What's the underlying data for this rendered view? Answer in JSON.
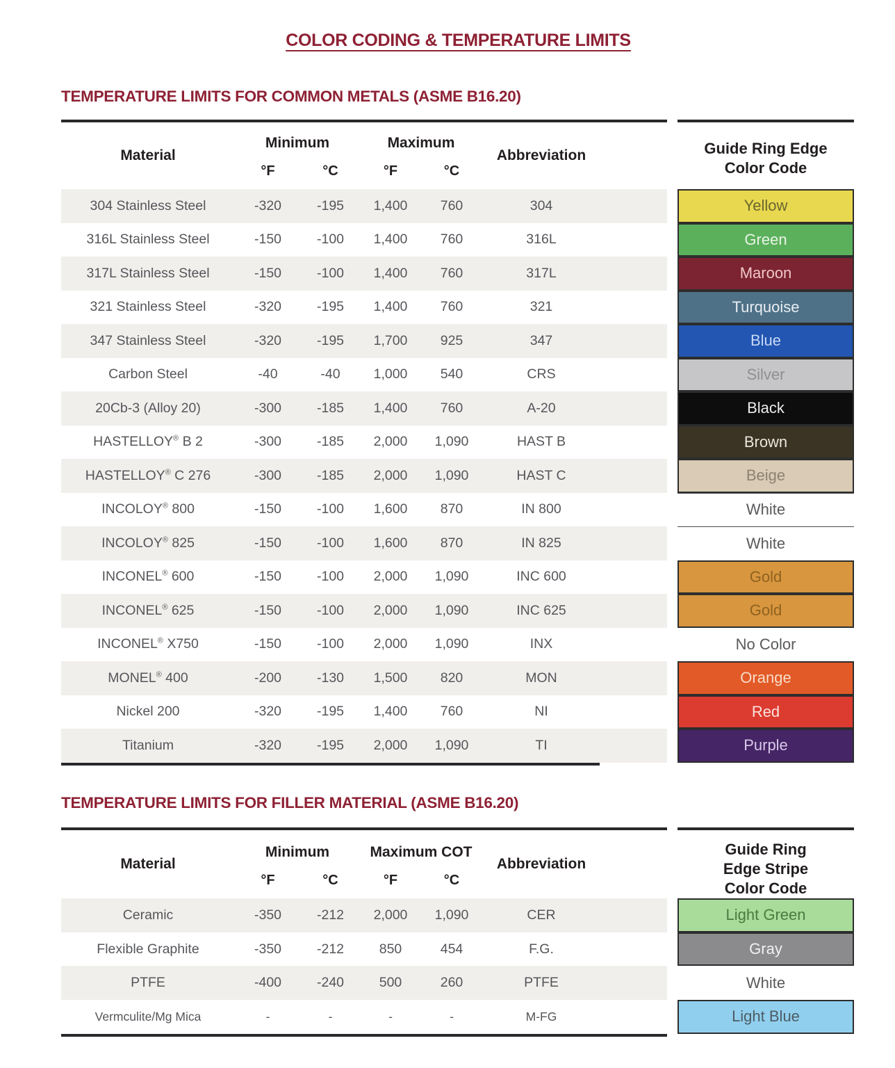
{
  "page": {
    "title": "COLOR CODING & TEMPERATURE LIMITS"
  },
  "metals_table": {
    "section_title": "TEMPERATURE LIMITS FOR COMMON METALS (ASME B16.20)",
    "headers": {
      "material": "Material",
      "minimum": "Minimum",
      "maximum": "Maximum",
      "deg_f": "°F",
      "deg_c": "°C",
      "abbreviation": "Abbreviation"
    },
    "color_column_title_line1": "Guide Ring Edge",
    "color_column_title_line2": "Color Code",
    "rows": [
      {
        "material": "304 Stainless Steel",
        "min_f": "-320",
        "min_c": "-195",
        "max_f": "1,400",
        "max_c": "760",
        "abbr": "304",
        "color_label": "Yellow",
        "swatch_bg": "#e8d84f",
        "swatch_text_color": "#6a662f",
        "swatch_style": "filled"
      },
      {
        "material": "316L Stainless Steel",
        "min_f": "-150",
        "min_c": "-100",
        "max_f": "1,400",
        "max_c": "760",
        "abbr": "316L",
        "color_label": "Green",
        "swatch_bg": "#5bb05c",
        "swatch_text_color": "#eaf4e6",
        "swatch_style": "filled"
      },
      {
        "material": "317L Stainless Steel",
        "min_f": "-150",
        "min_c": "-100",
        "max_f": "1,400",
        "max_c": "760",
        "abbr": "317L",
        "color_label": "Maroon",
        "swatch_bg": "#7c2431",
        "swatch_text_color": "#f0c6ca",
        "swatch_style": "filled"
      },
      {
        "material": "321 Stainless Steel",
        "min_f": "-320",
        "min_c": "-195",
        "max_f": "1,400",
        "max_c": "760",
        "abbr": "321",
        "color_label": "Turquoise",
        "swatch_bg": "#4f7187",
        "swatch_text_color": "#e8eef2",
        "swatch_style": "filled"
      },
      {
        "material": "347 Stainless Steel",
        "min_f": "-320",
        "min_c": "-195",
        "max_f": "1,700",
        "max_c": "925",
        "abbr": "347",
        "color_label": "Blue",
        "swatch_bg": "#2256b2",
        "swatch_text_color": "#c9d9f4",
        "swatch_style": "filled"
      },
      {
        "material": "Carbon Steel",
        "min_f": "-40",
        "min_c": "-40",
        "max_f": "1,000",
        "max_c": "540",
        "abbr": "CRS",
        "color_label": "Silver",
        "swatch_bg": "#c6c6c8",
        "swatch_text_color": "#8f8f91",
        "swatch_style": "filled"
      },
      {
        "material": "20Cb-3 (Alloy 20)",
        "min_f": "-300",
        "min_c": "-185",
        "max_f": "1,400",
        "max_c": "760",
        "abbr": "A-20",
        "color_label": "Black",
        "swatch_bg": "#0d0d0d",
        "swatch_text_color": "#ececec",
        "swatch_style": "filled"
      },
      {
        "material": "HASTELLOY® B 2",
        "min_f": "-300",
        "min_c": "-185",
        "max_f": "2,000",
        "max_c": "1,090",
        "abbr": "HAST B",
        "color_label": "Brown",
        "swatch_bg": "#3b3424",
        "swatch_text_color": "#eae6dd",
        "swatch_style": "filled"
      },
      {
        "material": "HASTELLOY® C 276",
        "min_f": "-300",
        "min_c": "-185",
        "max_f": "2,000",
        "max_c": "1,090",
        "abbr": "HAST C",
        "color_label": "Beige",
        "swatch_bg": "#d9cbb5",
        "swatch_text_color": "#8d8373",
        "swatch_style": "filled"
      },
      {
        "material": "INCOLOY® 800",
        "min_f": "-150",
        "min_c": "-100",
        "max_f": "1,600",
        "max_c": "870",
        "abbr": "IN 800",
        "color_label": "White",
        "swatch_bg": "#ffffff",
        "swatch_text_color": "#58595b",
        "swatch_style": "white"
      },
      {
        "material": "INCOLOY® 825",
        "min_f": "-150",
        "min_c": "-100",
        "max_f": "1,600",
        "max_c": "870",
        "abbr": "IN 825",
        "color_label": "White",
        "swatch_bg": "#ffffff",
        "swatch_text_color": "#58595b",
        "swatch_style": "white"
      },
      {
        "material": "INCONEL® 600",
        "min_f": "-150",
        "min_c": "-100",
        "max_f": "2,000",
        "max_c": "1,090",
        "abbr": "INC 600",
        "color_label": "Gold",
        "swatch_bg": "#d8963f",
        "swatch_text_color": "#8f6220",
        "swatch_style": "filled"
      },
      {
        "material": "INCONEL® 625",
        "min_f": "-150",
        "min_c": "-100",
        "max_f": "2,000",
        "max_c": "1,090",
        "abbr": "INC 625",
        "color_label": "Gold",
        "swatch_bg": "#d8963f",
        "swatch_text_color": "#8f6220",
        "swatch_style": "filled"
      },
      {
        "material": "INCONEL® X750",
        "min_f": "-150",
        "min_c": "-100",
        "max_f": "2,000",
        "max_c": "1,090",
        "abbr": "INX",
        "color_label": "No Color",
        "swatch_bg": "#ffffff",
        "swatch_text_color": "#58595b",
        "swatch_style": "none"
      },
      {
        "material": "MONEL® 400",
        "min_f": "-200",
        "min_c": "-130",
        "max_f": "1,500",
        "max_c": "820",
        "abbr": "MON",
        "color_label": "Orange",
        "swatch_bg": "#e25a27",
        "swatch_text_color": "#f8dcc8",
        "swatch_style": "filled"
      },
      {
        "material": "Nickel 200",
        "min_f": "-320",
        "min_c": "-195",
        "max_f": "1,400",
        "max_c": "760",
        "abbr": "NI",
        "color_label": "Red",
        "swatch_bg": "#dc3b30",
        "swatch_text_color": "#fbe3df",
        "swatch_style": "filled"
      },
      {
        "material": "Titanium",
        "min_f": "-320",
        "min_c": "-195",
        "max_f": "2,000",
        "max_c": "1,090",
        "abbr": "TI",
        "color_label": "Purple",
        "swatch_bg": "#452566",
        "swatch_text_color": "#d9c9e9",
        "swatch_style": "filled"
      }
    ]
  },
  "filler_table": {
    "section_title": "TEMPERATURE LIMITS FOR FILLER MATERIAL (ASME B16.20)",
    "headers": {
      "material": "Material",
      "minimum": "Minimum",
      "maximum": "Maximum COT",
      "deg_f": "°F",
      "deg_c": "°C",
      "abbreviation": "Abbreviation"
    },
    "color_column_title_line1": "Guide Ring",
    "color_column_title_line2": "Edge Stripe",
    "color_column_title_line3": "Color Code",
    "rows": [
      {
        "material": "Ceramic",
        "min_f": "-350",
        "min_c": "-212",
        "max_f": "2,000",
        "max_c": "1,090",
        "abbr": "CER",
        "color_label": "Light Green",
        "swatch_bg": "#a9db9b",
        "swatch_text_color": "#497c41",
        "swatch_style": "filled"
      },
      {
        "material": "Flexible Graphite",
        "min_f": "-350",
        "min_c": "-212",
        "max_f": "850",
        "max_c": "454",
        "abbr": "F.G.",
        "color_label": "Gray",
        "swatch_bg": "#8b8b8d",
        "swatch_text_color": "#f1f1f1",
        "swatch_style": "filled"
      },
      {
        "material": "PTFE",
        "min_f": "-400",
        "min_c": "-240",
        "max_f": "500",
        "max_c": "260",
        "abbr": "PTFE",
        "color_label": "White",
        "swatch_bg": "#ffffff",
        "swatch_text_color": "#58595b",
        "swatch_style": "none"
      },
      {
        "material": "Vermculite/Mg Mica",
        "min_f": "-",
        "min_c": "-",
        "max_f": "-",
        "max_c": "-",
        "abbr": "M-FG",
        "color_label": "Light Blue",
        "swatch_bg": "#90d0ee",
        "swatch_text_color": "#4e5b64",
        "swatch_style": "filled"
      }
    ]
  }
}
